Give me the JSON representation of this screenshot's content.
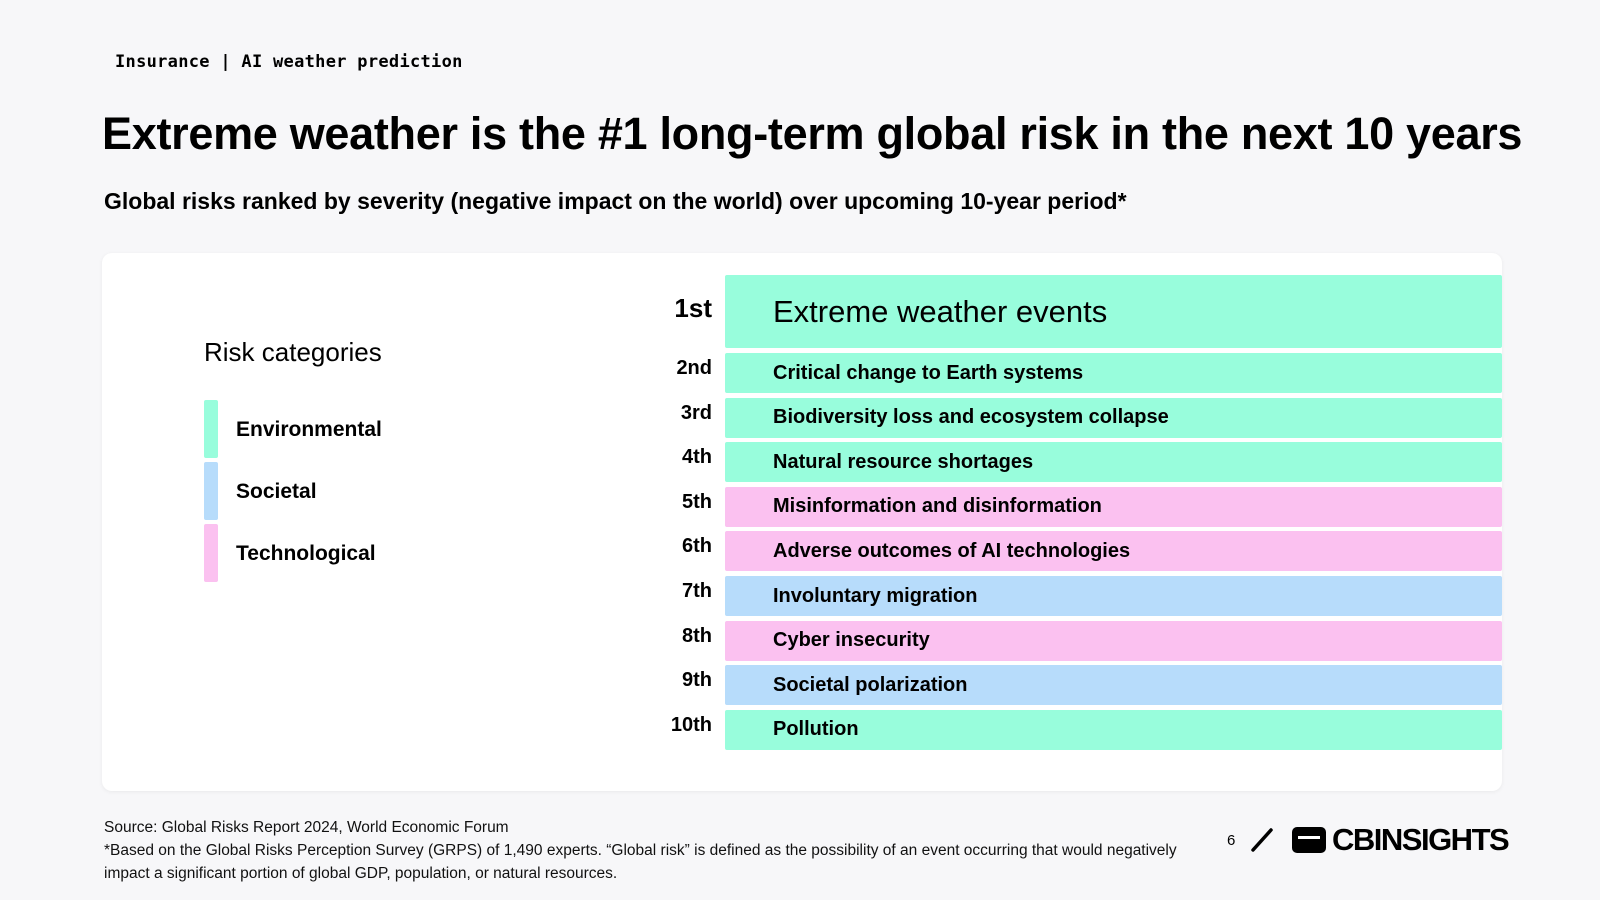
{
  "header": {
    "eyebrow": "Insurance | AI weather prediction",
    "title": "Extreme weather is the #1 long-term global risk in the next 10 years",
    "subtitle": "Global risks ranked by severity (negative impact on the world) over upcoming 10-year period*"
  },
  "legend": {
    "title": "Risk categories",
    "items": [
      {
        "label": "Environmental",
        "color": "#98fddc"
      },
      {
        "label": "Societal",
        "color": "#b7dcfb"
      },
      {
        "label": "Technological",
        "color": "#fbc1f0"
      }
    ]
  },
  "chart_data": {
    "type": "table",
    "rows": [
      {
        "rank": "1st",
        "risk": "Extreme weather events",
        "category": "Environmental"
      },
      {
        "rank": "2nd",
        "risk": "Critical change to Earth systems",
        "category": "Environmental"
      },
      {
        "rank": "3rd",
        "risk": "Biodiversity loss and ecosystem collapse",
        "category": "Environmental"
      },
      {
        "rank": "4th",
        "risk": "Natural resource shortages",
        "category": "Environmental"
      },
      {
        "rank": "5th",
        "risk": "Misinformation and disinformation",
        "category": "Technological"
      },
      {
        "rank": "6th",
        "risk": "Adverse outcomes of AI technologies",
        "category": "Technological"
      },
      {
        "rank": "7th",
        "risk": "Involuntary migration",
        "category": "Societal"
      },
      {
        "rank": "8th",
        "risk": "Cyber insecurity",
        "category": "Technological"
      },
      {
        "rank": "9th",
        "risk": "Societal polarization",
        "category": "Societal"
      },
      {
        "rank": "10th",
        "risk": "Pollution",
        "category": "Environmental"
      }
    ]
  },
  "footer": {
    "source": "Source: Global Risks Report 2024, World Economic Forum",
    "note": "*Based on the Global Risks Perception Survey (GRPS) of 1,490 experts. “Global risk” is defined as the possibility of an event  occurring that would negatively impact a significant portion of global GDP, population, or natural resources.",
    "page_number": "6",
    "logo_text": "CBINSIGHTS"
  }
}
